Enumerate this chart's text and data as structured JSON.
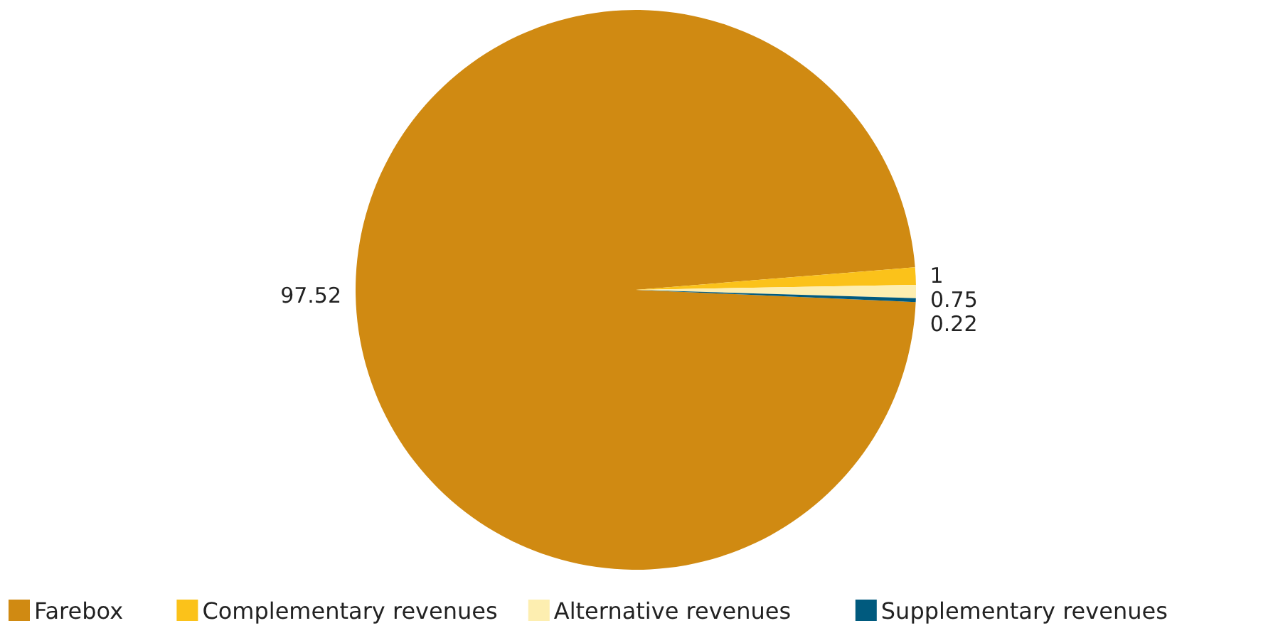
{
  "chart_data": {
    "type": "pie",
    "categories": [
      "Farebox",
      "Complementary revenues",
      "Alternative revenues",
      "Supplementary revenues"
    ],
    "values": [
      97.52,
      1,
      0.75,
      0.22
    ],
    "colors": [
      "#d08a12",
      "#fbc21a",
      "#fdeeb0",
      "#005a7e"
    ],
    "data_labels": true,
    "legend": "bottom"
  }
}
